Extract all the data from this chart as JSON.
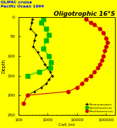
{
  "title_left": "OLIPAC cruise\nPacific Ocean 1994",
  "title_right": "Oligotrophic 16°S",
  "xlabel": "Cell /ml",
  "ylabel": "Depth",
  "background_color": "#ffff00",
  "xlim": [
    100,
    200000
  ],
  "ylim_bottom": 250,
  "ylim_top": 0,
  "yticks": [
    0,
    50,
    100,
    150,
    200,
    250
  ],
  "picoeukaryotes": {
    "label": "Picoeucaryotes",
    "color": "#000000",
    "marker": "+",
    "markersize": 3.5,
    "linewidth": 0.6,
    "depth": [
      5,
      15,
      30,
      45,
      60,
      75,
      90,
      105,
      120,
      130,
      140,
      150,
      160,
      170,
      180,
      190,
      200
    ],
    "cells": [
      300,
      280,
      260,
      400,
      350,
      320,
      450,
      600,
      800,
      1000,
      1200,
      1400,
      1100,
      900,
      600,
      350,
      200
    ]
  },
  "synechococcus": {
    "label": "Synechococcus",
    "color": "#00bb00",
    "marker": "s",
    "markersize": 4,
    "linewidth": 0.8,
    "depth": [
      5,
      15,
      30,
      45,
      60,
      80,
      100,
      115,
      130,
      140,
      150
    ],
    "cells": [
      700,
      600,
      900,
      1100,
      900,
      700,
      1100,
      1300,
      1200,
      500,
      200
    ]
  },
  "prochlorococcus": {
    "label": "Prochlorococcus",
    "color": "#cc0000",
    "marker": "o",
    "markersize": 3.5,
    "linewidth": 0.8,
    "depth": [
      5,
      15,
      20,
      30,
      40,
      55,
      65,
      75,
      85,
      100,
      110,
      120,
      130,
      140,
      150,
      160,
      170,
      180,
      190,
      200,
      220
    ],
    "cells": [
      20000,
      30000,
      40000,
      60000,
      80000,
      100000,
      110000,
      100000,
      90000,
      80000,
      70000,
      60000,
      50000,
      40000,
      30000,
      20000,
      15000,
      10000,
      5000,
      200,
      150
    ]
  },
  "legend_items": [
    {
      "label": "Picoeucaryotes",
      "color": "#000000",
      "marker": "+"
    },
    {
      "label": "Synechococcus",
      "color": "#00bb00",
      "marker": "s"
    },
    {
      "label": "Prochlorococcus",
      "color": "#cc0000",
      "marker": "o"
    }
  ]
}
